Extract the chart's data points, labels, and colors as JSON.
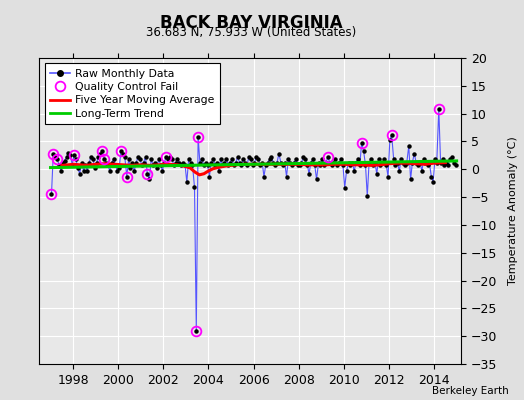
{
  "title": "BACK BAY VIRGINIA",
  "subtitle": "36.683 N, 75.933 W (United States)",
  "ylabel": "Temperature Anomaly (°C)",
  "attribution": "Berkeley Earth",
  "xlim": [
    1996.5,
    2015.2
  ],
  "ylim": [
    -35,
    20
  ],
  "yticks": [
    -35,
    -30,
    -25,
    -20,
    -15,
    -10,
    -5,
    0,
    5,
    10,
    15,
    20
  ],
  "xticks": [
    1998,
    2000,
    2002,
    2004,
    2006,
    2008,
    2010,
    2012,
    2014
  ],
  "plot_bg_color": "#e8e8e8",
  "fig_bg_color": "#e0e0e0",
  "raw_line_color": "#5555ff",
  "raw_marker_color": "#000000",
  "qc_color": "#ff00ff",
  "moving_avg_color": "#ff0000",
  "trend_color": "#00cc00",
  "raw_data": [
    [
      1997.04,
      -4.5
    ],
    [
      1997.12,
      2.8
    ],
    [
      1997.21,
      2.2
    ],
    [
      1997.29,
      1.8
    ],
    [
      1997.38,
      0.8
    ],
    [
      1997.46,
      -0.3
    ],
    [
      1997.54,
      1.2
    ],
    [
      1997.62,
      1.5
    ],
    [
      1997.71,
      2.2
    ],
    [
      1997.79,
      3.0
    ],
    [
      1997.88,
      2.5
    ],
    [
      1997.96,
      0.8
    ],
    [
      1998.04,
      2.5
    ],
    [
      1998.12,
      1.8
    ],
    [
      1998.21,
      0.2
    ],
    [
      1998.29,
      -0.8
    ],
    [
      1998.38,
      1.2
    ],
    [
      1998.46,
      -0.3
    ],
    [
      1998.54,
      0.8
    ],
    [
      1998.62,
      -0.3
    ],
    [
      1998.71,
      1.2
    ],
    [
      1998.79,
      2.2
    ],
    [
      1998.88,
      1.8
    ],
    [
      1998.96,
      0.2
    ],
    [
      1999.04,
      1.2
    ],
    [
      1999.12,
      2.2
    ],
    [
      1999.21,
      2.8
    ],
    [
      1999.29,
      3.2
    ],
    [
      1999.38,
      1.8
    ],
    [
      1999.46,
      1.2
    ],
    [
      1999.54,
      0.8
    ],
    [
      1999.62,
      -0.3
    ],
    [
      1999.71,
      1.2
    ],
    [
      1999.79,
      1.8
    ],
    [
      1999.88,
      0.8
    ],
    [
      1999.96,
      -0.3
    ],
    [
      2000.04,
      0.2
    ],
    [
      2000.12,
      3.2
    ],
    [
      2000.21,
      2.8
    ],
    [
      2000.29,
      2.2
    ],
    [
      2000.38,
      -1.3
    ],
    [
      2000.46,
      1.8
    ],
    [
      2000.54,
      0.2
    ],
    [
      2000.62,
      1.2
    ],
    [
      2000.71,
      -0.3
    ],
    [
      2000.79,
      1.2
    ],
    [
      2000.88,
      2.2
    ],
    [
      2000.96,
      1.8
    ],
    [
      2001.04,
      0.8
    ],
    [
      2001.12,
      1.2
    ],
    [
      2001.21,
      2.2
    ],
    [
      2001.29,
      -0.8
    ],
    [
      2001.38,
      -1.8
    ],
    [
      2001.46,
      1.8
    ],
    [
      2001.54,
      0.8
    ],
    [
      2001.62,
      1.2
    ],
    [
      2001.71,
      0.2
    ],
    [
      2001.79,
      1.8
    ],
    [
      2001.88,
      0.8
    ],
    [
      2001.96,
      -0.3
    ],
    [
      2002.04,
      1.2
    ],
    [
      2002.12,
      2.2
    ],
    [
      2002.21,
      1.8
    ],
    [
      2002.29,
      2.2
    ],
    [
      2002.38,
      1.8
    ],
    [
      2002.46,
      0.8
    ],
    [
      2002.54,
      1.2
    ],
    [
      2002.62,
      1.8
    ],
    [
      2002.71,
      1.2
    ],
    [
      2002.79,
      0.8
    ],
    [
      2002.88,
      1.2
    ],
    [
      2002.96,
      0.8
    ],
    [
      2003.04,
      -2.3
    ],
    [
      2003.12,
      1.8
    ],
    [
      2003.21,
      1.2
    ],
    [
      2003.29,
      0.8
    ],
    [
      2003.38,
      -3.2
    ],
    [
      2003.46,
      -29.0
    ],
    [
      2003.54,
      5.8
    ],
    [
      2003.62,
      1.2
    ],
    [
      2003.71,
      1.8
    ],
    [
      2003.79,
      0.8
    ],
    [
      2003.88,
      1.2
    ],
    [
      2003.96,
      0.8
    ],
    [
      2004.04,
      -1.3
    ],
    [
      2004.12,
      1.2
    ],
    [
      2004.21,
      1.8
    ],
    [
      2004.29,
      0.8
    ],
    [
      2004.38,
      1.2
    ],
    [
      2004.46,
      -0.3
    ],
    [
      2004.54,
      1.8
    ],
    [
      2004.62,
      0.8
    ],
    [
      2004.71,
      1.2
    ],
    [
      2004.79,
      1.8
    ],
    [
      2004.88,
      0.8
    ],
    [
      2004.96,
      1.2
    ],
    [
      2005.04,
      1.8
    ],
    [
      2005.12,
      0.8
    ],
    [
      2005.21,
      1.2
    ],
    [
      2005.29,
      2.2
    ],
    [
      2005.38,
      1.2
    ],
    [
      2005.46,
      0.8
    ],
    [
      2005.54,
      1.8
    ],
    [
      2005.62,
      1.2
    ],
    [
      2005.71,
      0.8
    ],
    [
      2005.79,
      2.2
    ],
    [
      2005.88,
      1.8
    ],
    [
      2005.96,
      0.8
    ],
    [
      2006.04,
      1.2
    ],
    [
      2006.12,
      2.2
    ],
    [
      2006.21,
      1.8
    ],
    [
      2006.29,
      0.8
    ],
    [
      2006.38,
      1.2
    ],
    [
      2006.46,
      -1.3
    ],
    [
      2006.54,
      0.8
    ],
    [
      2006.62,
      1.2
    ],
    [
      2006.71,
      1.8
    ],
    [
      2006.79,
      2.2
    ],
    [
      2006.88,
      1.2
    ],
    [
      2006.96,
      0.8
    ],
    [
      2007.04,
      1.2
    ],
    [
      2007.12,
      2.8
    ],
    [
      2007.21,
      1.2
    ],
    [
      2007.29,
      0.8
    ],
    [
      2007.38,
      1.2
    ],
    [
      2007.46,
      -1.3
    ],
    [
      2007.54,
      1.8
    ],
    [
      2007.62,
      1.2
    ],
    [
      2007.71,
      0.8
    ],
    [
      2007.79,
      1.2
    ],
    [
      2007.88,
      1.8
    ],
    [
      2007.96,
      0.8
    ],
    [
      2008.04,
      0.8
    ],
    [
      2008.12,
      1.2
    ],
    [
      2008.21,
      2.2
    ],
    [
      2008.29,
      1.8
    ],
    [
      2008.38,
      0.8
    ],
    [
      2008.46,
      -0.8
    ],
    [
      2008.54,
      1.2
    ],
    [
      2008.62,
      1.8
    ],
    [
      2008.71,
      0.8
    ],
    [
      2008.79,
      -1.8
    ],
    [
      2008.88,
      1.2
    ],
    [
      2008.96,
      0.8
    ],
    [
      2009.04,
      1.8
    ],
    [
      2009.12,
      0.8
    ],
    [
      2009.21,
      1.2
    ],
    [
      2009.29,
      2.2
    ],
    [
      2009.38,
      1.2
    ],
    [
      2009.46,
      0.8
    ],
    [
      2009.54,
      1.2
    ],
    [
      2009.62,
      1.8
    ],
    [
      2009.71,
      0.8
    ],
    [
      2009.79,
      1.2
    ],
    [
      2009.88,
      1.8
    ],
    [
      2009.96,
      0.8
    ],
    [
      2010.04,
      -3.3
    ],
    [
      2010.12,
      -0.3
    ],
    [
      2010.21,
      1.2
    ],
    [
      2010.29,
      0.8
    ],
    [
      2010.38,
      1.2
    ],
    [
      2010.46,
      -0.3
    ],
    [
      2010.54,
      1.2
    ],
    [
      2010.62,
      1.8
    ],
    [
      2010.71,
      0.8
    ],
    [
      2010.79,
      4.8
    ],
    [
      2010.88,
      3.2
    ],
    [
      2010.96,
      0.8
    ],
    [
      2011.04,
      -4.8
    ],
    [
      2011.12,
      1.2
    ],
    [
      2011.21,
      1.8
    ],
    [
      2011.29,
      0.8
    ],
    [
      2011.38,
      1.2
    ],
    [
      2011.46,
      -0.8
    ],
    [
      2011.54,
      1.8
    ],
    [
      2011.62,
      0.8
    ],
    [
      2011.71,
      1.2
    ],
    [
      2011.79,
      1.8
    ],
    [
      2011.88,
      0.8
    ],
    [
      2011.96,
      -1.3
    ],
    [
      2012.04,
      5.2
    ],
    [
      2012.12,
      6.2
    ],
    [
      2012.21,
      1.8
    ],
    [
      2012.29,
      0.8
    ],
    [
      2012.38,
      1.2
    ],
    [
      2012.46,
      -0.3
    ],
    [
      2012.54,
      1.8
    ],
    [
      2012.62,
      1.2
    ],
    [
      2012.71,
      0.8
    ],
    [
      2012.79,
      1.2
    ],
    [
      2012.88,
      4.2
    ],
    [
      2012.96,
      -1.8
    ],
    [
      2013.04,
      1.2
    ],
    [
      2013.12,
      2.8
    ],
    [
      2013.21,
      1.2
    ],
    [
      2013.29,
      0.8
    ],
    [
      2013.38,
      1.2
    ],
    [
      2013.46,
      -0.3
    ],
    [
      2013.54,
      1.8
    ],
    [
      2013.62,
      1.2
    ],
    [
      2013.71,
      0.8
    ],
    [
      2013.79,
      1.2
    ],
    [
      2013.88,
      -1.3
    ],
    [
      2013.96,
      -2.3
    ],
    [
      2014.04,
      1.8
    ],
    [
      2014.12,
      1.2
    ],
    [
      2014.21,
      10.8
    ],
    [
      2014.29,
      1.2
    ],
    [
      2014.38,
      1.8
    ],
    [
      2014.46,
      0.8
    ],
    [
      2014.54,
      1.2
    ],
    [
      2014.62,
      0.8
    ],
    [
      2014.71,
      1.8
    ],
    [
      2014.79,
      2.2
    ],
    [
      2014.88,
      1.2
    ],
    [
      2014.96,
      0.8
    ]
  ],
  "qc_fail": [
    [
      1997.04,
      -4.5
    ],
    [
      1997.12,
      2.8
    ],
    [
      1997.29,
      1.8
    ],
    [
      1998.04,
      2.5
    ],
    [
      1999.29,
      3.2
    ],
    [
      1999.38,
      1.8
    ],
    [
      2000.12,
      3.2
    ],
    [
      2000.38,
      -1.3
    ],
    [
      2001.29,
      -0.8
    ],
    [
      2002.12,
      2.2
    ],
    [
      2003.46,
      -29.0
    ],
    [
      2003.54,
      5.8
    ],
    [
      2009.29,
      2.2
    ],
    [
      2010.79,
      4.8
    ],
    [
      2012.12,
      6.2
    ],
    [
      2014.21,
      10.8
    ]
  ],
  "moving_avg": [
    [
      1997.5,
      0.7
    ],
    [
      1997.8,
      0.8
    ],
    [
      1998.0,
      0.9
    ],
    [
      1998.3,
      0.8
    ],
    [
      1998.6,
      0.7
    ],
    [
      1999.0,
      0.9
    ],
    [
      1999.4,
      1.0
    ],
    [
      1999.8,
      0.9
    ],
    [
      2000.2,
      0.8
    ],
    [
      2000.6,
      0.7
    ],
    [
      2001.0,
      0.8
    ],
    [
      2001.4,
      0.7
    ],
    [
      2001.8,
      0.8
    ],
    [
      2002.2,
      0.9
    ],
    [
      2002.6,
      0.8
    ],
    [
      2003.0,
      0.5
    ],
    [
      2003.2,
      0.2
    ],
    [
      2003.4,
      -0.5
    ],
    [
      2003.6,
      -1.0
    ],
    [
      2003.8,
      -0.8
    ],
    [
      2004.0,
      -0.3
    ],
    [
      2004.2,
      0.1
    ],
    [
      2004.5,
      0.4
    ],
    [
      2004.8,
      0.6
    ],
    [
      2005.2,
      0.8
    ],
    [
      2005.6,
      0.9
    ],
    [
      2006.0,
      0.9
    ],
    [
      2006.4,
      0.9
    ],
    [
      2006.8,
      0.9
    ],
    [
      2007.2,
      0.9
    ],
    [
      2007.6,
      0.9
    ],
    [
      2008.0,
      0.9
    ],
    [
      2008.4,
      0.8
    ],
    [
      2008.8,
      0.8
    ],
    [
      2009.2,
      0.8
    ],
    [
      2009.6,
      0.9
    ],
    [
      2010.0,
      0.9
    ],
    [
      2010.4,
      0.8
    ],
    [
      2010.8,
      0.8
    ],
    [
      2011.2,
      0.7
    ],
    [
      2011.6,
      0.8
    ],
    [
      2012.0,
      1.0
    ],
    [
      2012.4,
      1.1
    ],
    [
      2012.8,
      1.1
    ],
    [
      2013.2,
      1.0
    ],
    [
      2013.6,
      0.9
    ],
    [
      2014.0,
      1.1
    ],
    [
      2014.5,
      1.2
    ]
  ],
  "trend_x": [
    1997.0,
    2015.0
  ],
  "trend_y": [
    0.3,
    1.5
  ]
}
